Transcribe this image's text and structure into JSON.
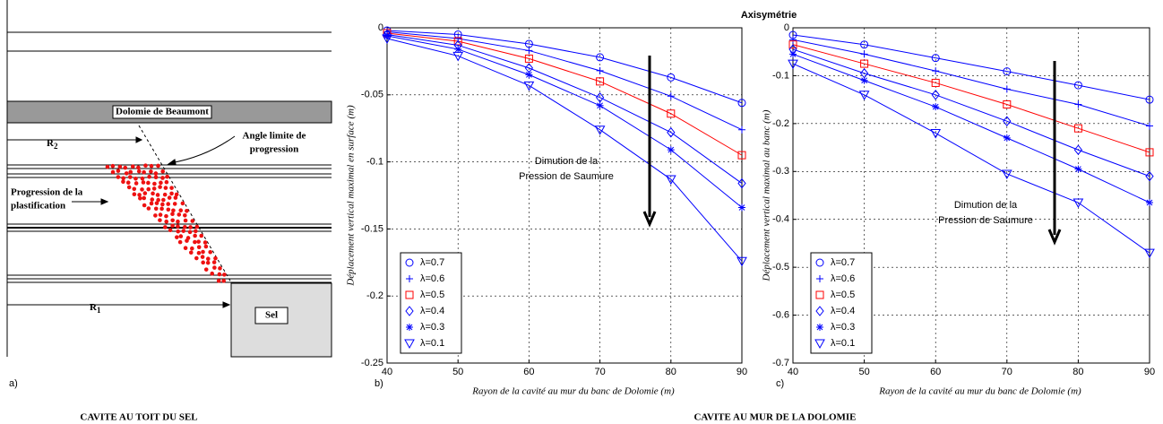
{
  "figure_title": "Axisymétrie",
  "diagram": {
    "label": "a)",
    "caption": "CAVITE AU TOIT DU SEL",
    "layer": "Dolomie de Beaumont",
    "r2": {
      "base": "R",
      "sub": "2"
    },
    "r1": {
      "base": "R",
      "sub": "1"
    },
    "angle_label": [
      "Angle limite de",
      "progression"
    ],
    "progression_label": [
      "Progression de la",
      "plastification"
    ],
    "salt": "Sel"
  },
  "caption_right": "CAVITE AU MUR DE LA DOLOMIE",
  "chart_data": [
    {
      "type": "line",
      "panel_label": "b)",
      "xlabel": "Rayon de la cavité au mur du banc de Dolomie (m)",
      "ylabel": "Déplacement vertical maximal en surface (m)",
      "annotation": [
        "Dimution de la",
        "Pression de Saumure"
      ],
      "x": [
        40,
        50,
        60,
        70,
        80,
        90
      ],
      "xlim": [
        40,
        90
      ],
      "xticks": [
        40,
        50,
        60,
        70,
        80,
        90
      ],
      "ylim": [
        -0.25,
        0
      ],
      "yticks": [
        0,
        -0.05,
        -0.1,
        -0.15,
        -0.2,
        -0.25
      ],
      "grid": true,
      "legend": "lower left",
      "series": [
        {
          "name": "λ=0.7",
          "color": "#0000ff",
          "marker": "o",
          "values": [
            -0.002,
            -0.005,
            -0.012,
            -0.022,
            -0.037,
            -0.056
          ]
        },
        {
          "name": "λ=0.6",
          "color": "#0000ff",
          "marker": "+",
          "values": [
            -0.003,
            -0.008,
            -0.017,
            -0.032,
            -0.051,
            -0.076
          ]
        },
        {
          "name": "λ=0.5",
          "color": "#ff0000",
          "marker": "s",
          "values": [
            -0.004,
            -0.01,
            -0.023,
            -0.04,
            -0.064,
            -0.095
          ]
        },
        {
          "name": "λ=0.4",
          "color": "#0000ff",
          "marker": "d",
          "values": [
            -0.005,
            -0.013,
            -0.03,
            -0.052,
            -0.078,
            -0.116
          ]
        },
        {
          "name": "λ=0.3",
          "color": "#0000ff",
          "marker": "*",
          "values": [
            -0.006,
            -0.016,
            -0.035,
            -0.058,
            -0.091,
            -0.134
          ]
        },
        {
          "name": "λ=0.1",
          "color": "#0000ff",
          "marker": "v",
          "values": [
            -0.008,
            -0.021,
            -0.043,
            -0.076,
            -0.113,
            -0.174
          ]
        }
      ]
    },
    {
      "type": "line",
      "panel_label": "c)",
      "xlabel": "Rayon de la cavité au mur du banc de Dolomie (m)",
      "ylabel": "Déplacement vertical maximal au banc (m)",
      "annotation": [
        "Dimution de la",
        "Pression de Saumure"
      ],
      "x": [
        40,
        50,
        60,
        70,
        80,
        90
      ],
      "xlim": [
        40,
        90
      ],
      "xticks": [
        40,
        50,
        60,
        70,
        80,
        90
      ],
      "ylim": [
        -0.7,
        0
      ],
      "yticks": [
        0,
        -0.1,
        -0.2,
        -0.3,
        -0.4,
        -0.5,
        -0.6,
        -0.7
      ],
      "grid": true,
      "legend": "lower left",
      "series": [
        {
          "name": "λ=0.7",
          "color": "#0000ff",
          "marker": "o",
          "values": [
            -0.015,
            -0.035,
            -0.063,
            -0.091,
            -0.12,
            -0.15
          ]
        },
        {
          "name": "λ=0.6",
          "color": "#0000ff",
          "marker": "+",
          "values": [
            -0.025,
            -0.055,
            -0.09,
            -0.128,
            -0.16,
            -0.205
          ]
        },
        {
          "name": "λ=0.5",
          "color": "#ff0000",
          "marker": "s",
          "values": [
            -0.035,
            -0.075,
            -0.115,
            -0.16,
            -0.21,
            -0.26
          ]
        },
        {
          "name": "λ=0.4",
          "color": "#0000ff",
          "marker": "d",
          "values": [
            -0.045,
            -0.095,
            -0.14,
            -0.195,
            -0.255,
            -0.31
          ]
        },
        {
          "name": "λ=0.3",
          "color": "#0000ff",
          "marker": "*",
          "values": [
            -0.055,
            -0.11,
            -0.165,
            -0.23,
            -0.295,
            -0.365
          ]
        },
        {
          "name": "λ=0.1",
          "color": "#0000ff",
          "marker": "v",
          "values": [
            -0.075,
            -0.14,
            -0.22,
            -0.305,
            -0.365,
            -0.47
          ]
        }
      ]
    }
  ]
}
